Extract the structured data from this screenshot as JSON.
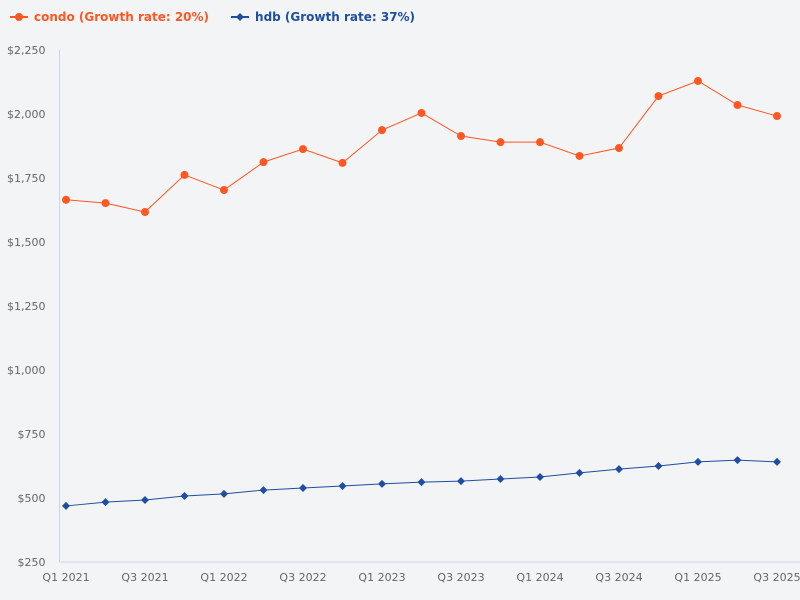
{
  "chart_data": {
    "type": "line",
    "title": "",
    "xlabel": "",
    "ylabel": "",
    "ylim": [
      250,
      2250
    ],
    "yticks": [
      250,
      500,
      750,
      1000,
      1250,
      1500,
      1750,
      2000,
      2250
    ],
    "ytick_labels": [
      "$250",
      "$500",
      "$750",
      "$1,000",
      "$1,250",
      "$1,500",
      "$1,750",
      "$2,000",
      "$2,250"
    ],
    "categories": [
      "Q1 2021",
      "Q2 2021",
      "Q3 2021",
      "Q4 2021",
      "Q1 2022",
      "Q2 2022",
      "Q3 2022",
      "Q4 2022",
      "Q1 2023",
      "Q2 2023",
      "Q3 2023",
      "Q4 2023",
      "Q1 2024",
      "Q2 2024",
      "Q3 2024",
      "Q4 2024",
      "Q1 2025",
      "Q2 2025",
      "Q3 2025"
    ],
    "xtick_labels": [
      "Q1 2021",
      "Q3 2021",
      "Q1 2022",
      "Q3 2022",
      "Q1 2023",
      "Q3 2023",
      "Q1 2024",
      "Q3 2024",
      "Q1 2025",
      "Q3 2025"
    ],
    "grid": false,
    "legend_position": "top-left",
    "series": [
      {
        "name": "condo (Growth rate: 20%)",
        "color": "#ff5722",
        "marker": "circle",
        "values": [
          1665,
          1652,
          1617,
          1762,
          1703,
          1812,
          1863,
          1809,
          1937,
          2004,
          1914,
          1890,
          1890,
          1836,
          1867,
          2070,
          2129,
          2035,
          1992
        ]
      },
      {
        "name": "hdb (Growth rate: 37%)",
        "color": "#1f4e9e",
        "marker": "diamond",
        "values": [
          469,
          484,
          492,
          508,
          516,
          531,
          539,
          547,
          555,
          562,
          566,
          574,
          582,
          598,
          613,
          625,
          641,
          648,
          641
        ]
      }
    ]
  }
}
